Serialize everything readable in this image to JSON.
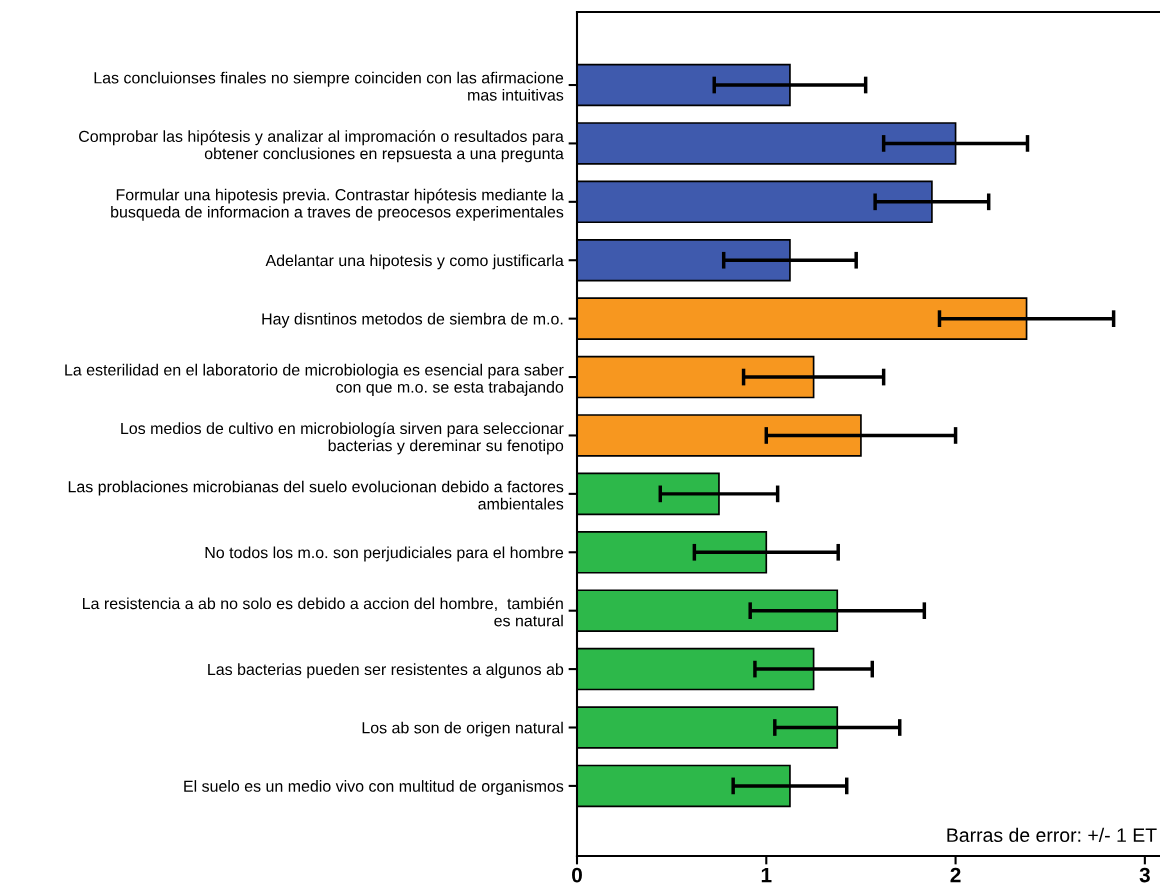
{
  "chart_data": {
    "type": "bar",
    "orientation": "horizontal",
    "categories": [
      "Las concluionses finales no siempre coinciden con las afirmacione\nmas intuitivas",
      "Comprobar las hipótesis y analizar al impromación o resultados para\nobtener conclusiones en repsuesta a una pregunta",
      "Formular una hipotesis previa. Contrastar hipótesis mediante la\nbusqueda de informacion a traves de preocesos experimentales",
      "Adelantar una hipotesis y como justificarla",
      "Hay disntinos metodos de siembra de m.o.",
      "La esterilidad en el laboratorio de microbiologia es esencial para saber\ncon que m.o. se esta trabajando",
      "Los medios de cultivo en microbiología sirven para seleccionar\nbacterias y dereminar su fenotipo",
      "Las problaciones microbianas del suelo evolucionan debido a factores\nambientales",
      "No todos los m.o. son perjudiciales para el hombre",
      "La resistencia a ab no solo es debido a accion del hombre,  también\nes natural",
      "Las bacterias pueden ser resistentes a algunos ab",
      "Los ab son de origen natural",
      "El suelo es un medio vivo con multitud de organismos"
    ],
    "values": [
      1.125,
      2.0,
      1.875,
      1.125,
      2.375,
      1.25,
      1.5,
      0.75,
      1.0,
      1.375,
      1.25,
      1.375,
      1.125
    ],
    "errors": [
      0.4,
      0.38,
      0.3,
      0.35,
      0.46,
      0.37,
      0.5,
      0.31,
      0.38,
      0.46,
      0.31,
      0.33,
      0.3
    ],
    "colors": [
      "#3f5aad",
      "#3f5aad",
      "#3f5aad",
      "#3f5aad",
      "#f7971f",
      "#f7971f",
      "#f7971f",
      "#2db84a",
      "#2db84a",
      "#2db84a",
      "#2db84a",
      "#2db84a",
      "#2db84a"
    ],
    "xlim": [
      0,
      3.08
    ],
    "xticks": [
      0,
      1,
      2,
      3
    ],
    "annotations": [
      "Barras de error: +/- 1 ET"
    ]
  }
}
